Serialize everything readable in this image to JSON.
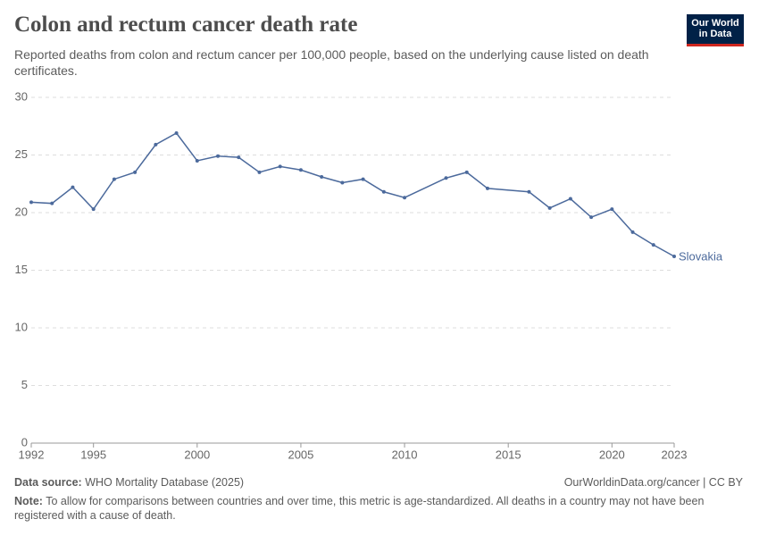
{
  "chart_data": {
    "type": "line",
    "title": "Colon and rectum cancer death rate",
    "subtitle": "Reported deaths from colon and rectum cancer per 100,000 people, based on the underlying cause listed on death certificates.",
    "logo": [
      "Our World",
      "in Data"
    ],
    "x": [
      1992,
      1993,
      1994,
      1995,
      1996,
      1997,
      1998,
      1999,
      2000,
      2001,
      2002,
      2003,
      2004,
      2005,
      2006,
      2007,
      2008,
      2009,
      2010,
      2012,
      2013,
      2014,
      2016,
      2017,
      2018,
      2019,
      2020,
      2021,
      2022,
      2023
    ],
    "series": [
      {
        "name": "Slovakia",
        "color": "#4c6a9c",
        "values": [
          20.9,
          20.8,
          22.2,
          20.3,
          22.9,
          23.5,
          25.9,
          26.9,
          24.5,
          24.9,
          24.8,
          23.5,
          24.0,
          23.7,
          23.1,
          22.6,
          22.9,
          21.8,
          21.3,
          23.0,
          23.5,
          22.1,
          21.8,
          20.4,
          21.2,
          19.6,
          20.3,
          18.3,
          17.2,
          16.2
        ]
      }
    ],
    "xlim": [
      1992,
      2023
    ],
    "xticks": [
      1992,
      1995,
      2000,
      2005,
      2010,
      2015,
      2020,
      2023
    ],
    "ylim": [
      0,
      30
    ],
    "yticks": [
      0,
      5,
      10,
      15,
      20,
      25,
      30
    ],
    "grid": true,
    "source_label": "Data source:",
    "source": "WHO Mortality Database (2025)",
    "url": "OurWorldinData.org/cancer | CC BY",
    "note_label": "Note:",
    "note": "To allow for comparisons between countries and over time, this metric is age-standardized. All deaths in a country may not have been registered with a cause of death."
  }
}
